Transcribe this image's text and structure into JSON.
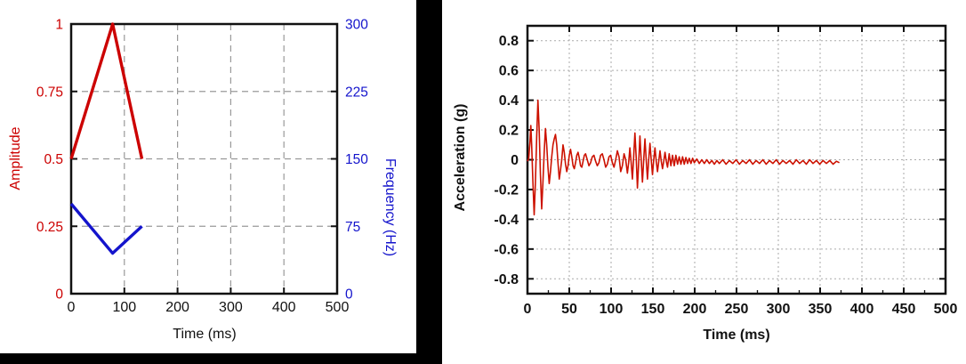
{
  "page": {
    "background": "#ffffff",
    "divider_color": "#000000"
  },
  "chart_data": [
    {
      "type": "line",
      "title": "",
      "xlabel": "Time (ms)",
      "ylabel_left": "Amplitude",
      "ylabel_right": "Frequency (Hz)",
      "x_range": [
        0,
        500
      ],
      "x_ticks": [
        0,
        100,
        200,
        300,
        400,
        500
      ],
      "x_tick_labels": [
        "0",
        "100",
        "200",
        "300",
        "400",
        "500"
      ],
      "y_left": {
        "range": [
          0,
          1
        ],
        "ticks": [
          0,
          0.25,
          0.5,
          0.75,
          1
        ],
        "labels": [
          "0",
          "0.25",
          "0.5",
          "0.75",
          "1"
        ],
        "color": "#cc0000"
      },
      "y_right": {
        "range": [
          0,
          300
        ],
        "ticks": [
          0,
          75,
          150,
          225,
          300
        ],
        "labels": [
          "0",
          "75",
          "150",
          "225",
          "300"
        ],
        "color": "#1414cc"
      },
      "grid": {
        "style": "dashed",
        "color": "#999999",
        "x_lines": [
          100,
          200,
          300,
          400
        ],
        "y_lines_left": [
          0.25,
          0.5,
          0.75
        ]
      },
      "series": [
        {
          "name": "Amplitude",
          "y_axis": "left",
          "color": "#cc0000",
          "points": [
            [
              0,
              0.5
            ],
            [
              78,
              1.0
            ],
            [
              133,
              0.5
            ]
          ]
        },
        {
          "name": "Frequency (Hz)",
          "y_axis": "right",
          "color": "#1414cc",
          "points": [
            [
              0,
              100
            ],
            [
              78,
              45
            ],
            [
              133,
              75
            ]
          ]
        }
      ]
    },
    {
      "type": "line",
      "title": "",
      "xlabel": "Time (ms)",
      "ylabel": "Acceleration (g)",
      "x_range": [
        0,
        500
      ],
      "x_ticks": [
        0,
        50,
        100,
        150,
        200,
        250,
        300,
        350,
        400,
        450,
        500
      ],
      "x_tick_labels": [
        "0",
        "50",
        "100",
        "150",
        "200",
        "250",
        "300",
        "350",
        "400",
        "450",
        "500"
      ],
      "y_range": [
        -0.9,
        0.9
      ],
      "y_ticks": [
        0.8,
        0.6,
        0.4,
        0.2,
        0,
        -0.2,
        -0.4,
        -0.6,
        -0.8
      ],
      "y_tick_labels": [
        "0.8",
        "0.6",
        "0.4",
        "0.2",
        "0",
        "-0.2",
        "-0.4",
        "-0.6",
        "-0.8"
      ],
      "grid": {
        "style": "dotted",
        "color": "#aaaaaa"
      },
      "series": [
        {
          "name": "Acceleration",
          "color": "#cc1100",
          "points": [
            [
              0,
              -0.01
            ],
            [
              1.5,
              0.01
            ],
            [
              3,
              0.12
            ],
            [
              4,
              0.23
            ],
            [
              5,
              0.1
            ],
            [
              6.5,
              -0.15
            ],
            [
              8,
              -0.37
            ],
            [
              9.5,
              -0.15
            ],
            [
              11,
              0.15
            ],
            [
              12.5,
              0.4
            ],
            [
              14,
              0.2
            ],
            [
              15.5,
              -0.1
            ],
            [
              17,
              -0.33
            ],
            [
              18.5,
              -0.15
            ],
            [
              20,
              0.05
            ],
            [
              21.5,
              0.21
            ],
            [
              23,
              0.1
            ],
            [
              24.5,
              -0.05
            ],
            [
              26,
              -0.16
            ],
            [
              27.5,
              -0.08
            ],
            [
              29,
              0.02
            ],
            [
              30.5,
              0.1
            ],
            [
              32,
              0.14
            ],
            [
              33.5,
              0.17
            ],
            [
              35,
              0.1
            ],
            [
              36.5,
              -0.02
            ],
            [
              38,
              -0.13
            ],
            [
              39.5,
              -0.07
            ],
            [
              41,
              0.0
            ],
            [
              42.5,
              0.1
            ],
            [
              44,
              0.05
            ],
            [
              45.5,
              -0.03
            ],
            [
              47,
              -0.08
            ],
            [
              48.5,
              -0.04
            ],
            [
              50,
              0.03
            ],
            [
              51.5,
              0.07
            ],
            [
              53,
              0.02
            ],
            [
              54.5,
              -0.04
            ],
            [
              56,
              -0.06
            ],
            [
              57.5,
              -0.02
            ],
            [
              59,
              0.03
            ],
            [
              60.5,
              0.05
            ],
            [
              62,
              0.01
            ],
            [
              63.5,
              -0.04
            ],
            [
              65,
              -0.05
            ],
            [
              66.5,
              -0.01
            ],
            [
              68,
              0.03
            ],
            [
              69.5,
              0.04
            ],
            [
              71.5,
              0.0
            ],
            [
              73.5,
              -0.04
            ],
            [
              75.5,
              -0.02
            ],
            [
              77.5,
              0.02
            ],
            [
              79.5,
              0.03
            ],
            [
              81.5,
              -0.01
            ],
            [
              83.5,
              -0.04
            ],
            [
              85.5,
              -0.02
            ],
            [
              87.5,
              0.03
            ],
            [
              89.5,
              0.04
            ],
            [
              91.5,
              0.0
            ],
            [
              93.5,
              -0.05
            ],
            [
              95.5,
              -0.03
            ],
            [
              97.5,
              0.02
            ],
            [
              99.5,
              0.03
            ],
            [
              101.5,
              -0.02
            ],
            [
              103.5,
              -0.05
            ],
            [
              105.5,
              0.0
            ],
            [
              107.5,
              0.06
            ],
            [
              109.5,
              0.02
            ],
            [
              111.5,
              -0.08
            ],
            [
              113.5,
              -0.04
            ],
            [
              115.5,
              0.04
            ],
            [
              117.5,
              0.0
            ],
            [
              119.5,
              -0.09
            ],
            [
              121,
              -0.02
            ],
            [
              122.5,
              0.08
            ],
            [
              124,
              -0.02
            ],
            [
              125.5,
              -0.13
            ],
            [
              127,
              0.02
            ],
            [
              128.5,
              0.18
            ],
            [
              130,
              0.02
            ],
            [
              131.5,
              -0.19
            ],
            [
              133,
              -0.02
            ],
            [
              134.5,
              0.16
            ],
            [
              136,
              0.0
            ],
            [
              137.5,
              -0.15
            ],
            [
              139,
              0.0
            ],
            [
              140.5,
              0.14
            ],
            [
              142,
              0.0
            ],
            [
              143.5,
              -0.13
            ],
            [
              145,
              0.0
            ],
            [
              146.5,
              0.11
            ],
            [
              148,
              0.0
            ],
            [
              149.5,
              -0.1
            ],
            [
              151,
              0.0
            ],
            [
              152.5,
              0.08
            ],
            [
              154,
              -0.01
            ],
            [
              155.5,
              -0.08
            ],
            [
              157,
              -0.01
            ],
            [
              158.5,
              0.06
            ],
            [
              160,
              -0.01
            ],
            [
              161.5,
              -0.06
            ],
            [
              163,
              -0.01
            ],
            [
              164.5,
              0.05
            ],
            [
              166,
              -0.01
            ],
            [
              167.5,
              -0.05
            ],
            [
              169.5,
              0.04
            ],
            [
              171.5,
              -0.04
            ],
            [
              173.5,
              0.03
            ],
            [
              175.5,
              -0.04
            ],
            [
              177.5,
              0.03
            ],
            [
              179.5,
              -0.03
            ],
            [
              181.5,
              0.02
            ],
            [
              183.5,
              -0.03
            ],
            [
              185.5,
              0.02
            ],
            [
              187.5,
              -0.03
            ],
            [
              189.5,
              0.015
            ],
            [
              191.5,
              -0.025
            ],
            [
              193.5,
              0.01
            ],
            [
              195.5,
              -0.025
            ],
            [
              197.5,
              0.01
            ],
            [
              199.5,
              -0.02
            ],
            [
              202.5,
              0.005
            ],
            [
              205.5,
              -0.025
            ],
            [
              208.5,
              0.0
            ],
            [
              211.5,
              -0.025
            ],
            [
              214.5,
              0.0
            ],
            [
              217.5,
              -0.025
            ],
            [
              220.5,
              -0.005
            ],
            [
              223.5,
              -0.03
            ],
            [
              226.5,
              -0.005
            ],
            [
              229.5,
              -0.025
            ],
            [
              233.5,
              0.0
            ],
            [
              237.5,
              -0.03
            ],
            [
              241.5,
              -0.005
            ],
            [
              245.5,
              -0.025
            ],
            [
              249.5,
              0.0
            ],
            [
              253.5,
              -0.03
            ],
            [
              257.5,
              -0.005
            ],
            [
              261.5,
              -0.025
            ],
            [
              265.5,
              0.0
            ],
            [
              269.5,
              -0.03
            ],
            [
              273.5,
              -0.005
            ],
            [
              277.5,
              -0.025
            ],
            [
              281.5,
              0.0
            ],
            [
              285.5,
              -0.03
            ],
            [
              289.5,
              -0.005
            ],
            [
              293.5,
              -0.025
            ],
            [
              297.5,
              0.0
            ],
            [
              301.5,
              -0.03
            ],
            [
              305.5,
              -0.005
            ],
            [
              309.5,
              -0.025
            ],
            [
              313.5,
              -0.005
            ],
            [
              317.5,
              -0.03
            ],
            [
              321.5,
              0.0
            ],
            [
              325.5,
              -0.025
            ],
            [
              329.5,
              -0.005
            ],
            [
              333.5,
              -0.03
            ],
            [
              337.5,
              0.0
            ],
            [
              341.5,
              -0.025
            ],
            [
              345.5,
              -0.005
            ],
            [
              349.5,
              -0.03
            ],
            [
              353.5,
              -0.005
            ],
            [
              357.5,
              -0.025
            ],
            [
              361.5,
              -0.005
            ],
            [
              365.5,
              -0.03
            ],
            [
              369.5,
              -0.01
            ],
            [
              373,
              -0.02
            ]
          ]
        }
      ]
    }
  ]
}
